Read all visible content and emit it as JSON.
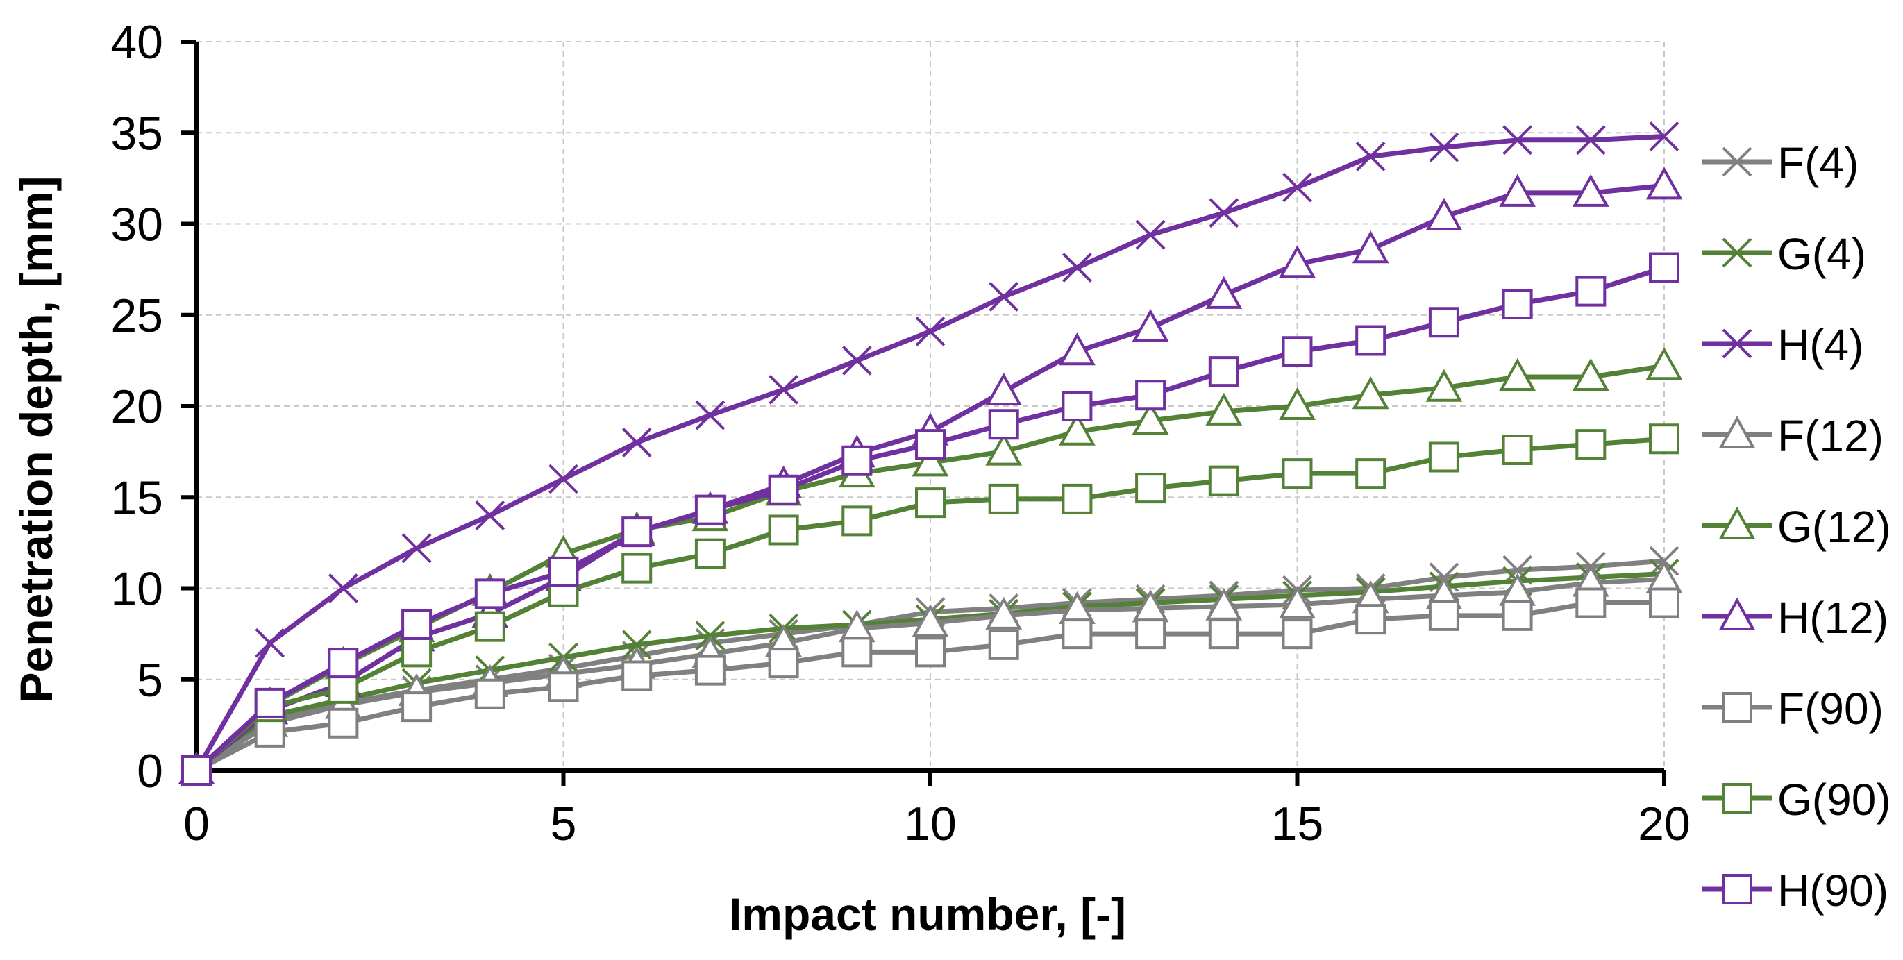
{
  "chart_data": {
    "type": "line",
    "title": "",
    "xlabel": "Impact number, [-]",
    "ylabel": "Penetration depth, [mm]",
    "xlim": [
      0,
      20
    ],
    "ylim": [
      0,
      40
    ],
    "xticks": [
      0,
      5,
      10,
      15,
      20
    ],
    "yticks": [
      0,
      5,
      10,
      15,
      20,
      25,
      30,
      35,
      40
    ],
    "grid": true,
    "legend_position": "right",
    "colors": {
      "grey": "#808080",
      "green": "#538135",
      "purple": "#7030A0"
    },
    "x": [
      0,
      1,
      2,
      3,
      4,
      5,
      6,
      7,
      8,
      9,
      10,
      11,
      12,
      13,
      14,
      15,
      16,
      17,
      18,
      19,
      20
    ],
    "series": [
      {
        "name": "F(4)",
        "color": "grey",
        "marker": "x",
        "values": [
          0,
          2.8,
          3.7,
          4.4,
          5.0,
          5.6,
          6.3,
          7.0,
          7.5,
          8.0,
          8.7,
          8.9,
          9.2,
          9.4,
          9.6,
          9.9,
          10.0,
          10.6,
          11.0,
          11.2,
          11.5
        ]
      },
      {
        "name": "G(4)",
        "color": "green",
        "marker": "x",
        "values": [
          0,
          3.0,
          3.9,
          4.8,
          5.5,
          6.2,
          6.9,
          7.4,
          7.8,
          8.0,
          8.3,
          8.6,
          9.0,
          9.2,
          9.4,
          9.6,
          9.8,
          10.1,
          10.4,
          10.6,
          10.8
        ]
      },
      {
        "name": "H(4)",
        "color": "purple",
        "marker": "x",
        "values": [
          0,
          7.0,
          10.0,
          12.2,
          14.0,
          16.0,
          18.0,
          19.5,
          20.9,
          22.5,
          24.1,
          26.0,
          27.6,
          29.4,
          30.6,
          32.0,
          33.7,
          34.2,
          34.6,
          34.6,
          34.8
        ]
      },
      {
        "name": "F(12)",
        "color": "grey",
        "marker": "triangle",
        "values": [
          0,
          2.6,
          3.6,
          4.3,
          4.8,
          5.3,
          5.8,
          6.4,
          7.0,
          7.8,
          8.1,
          8.5,
          8.8,
          8.9,
          9.0,
          9.1,
          9.4,
          9.6,
          9.8,
          10.3,
          10.5
        ]
      },
      {
        "name": "G(12)",
        "color": "green",
        "marker": "triangle",
        "values": [
          0,
          3.6,
          5.8,
          7.8,
          9.8,
          11.9,
          13.2,
          13.9,
          15.3,
          16.3,
          16.9,
          17.5,
          18.6,
          19.2,
          19.7,
          20.0,
          20.6,
          21.0,
          21.6,
          21.6,
          22.2
        ]
      },
      {
        "name": "H(12)",
        "color": "purple",
        "marker": "triangle",
        "values": [
          0,
          3.3,
          4.8,
          7.3,
          8.6,
          10.6,
          13.1,
          14.3,
          15.7,
          17.4,
          18.6,
          20.8,
          23.0,
          24.3,
          26.1,
          27.8,
          28.6,
          30.4,
          31.7,
          31.7,
          32.1
        ]
      },
      {
        "name": "F(90)",
        "color": "grey",
        "marker": "square",
        "values": [
          0,
          2.1,
          2.6,
          3.5,
          4.2,
          4.6,
          5.2,
          5.5,
          5.9,
          6.5,
          6.5,
          6.9,
          7.5,
          7.5,
          7.5,
          7.5,
          8.3,
          8.5,
          8.5,
          9.2,
          9.2
        ]
      },
      {
        "name": "G(90)",
        "color": "green",
        "marker": "square",
        "values": [
          0,
          3.5,
          4.5,
          6.5,
          7.9,
          9.8,
          11.1,
          11.9,
          13.2,
          13.7,
          14.7,
          14.9,
          14.9,
          15.5,
          15.9,
          16.3,
          16.3,
          17.2,
          17.6,
          17.9,
          18.2
        ]
      },
      {
        "name": "H(90)",
        "color": "purple",
        "marker": "square",
        "values": [
          0,
          3.7,
          5.9,
          8.0,
          9.7,
          10.9,
          13.1,
          14.3,
          15.4,
          17.0,
          17.9,
          19.0,
          20.0,
          20.6,
          21.9,
          23.0,
          23.6,
          24.6,
          25.6,
          26.3,
          27.6
        ]
      }
    ]
  }
}
